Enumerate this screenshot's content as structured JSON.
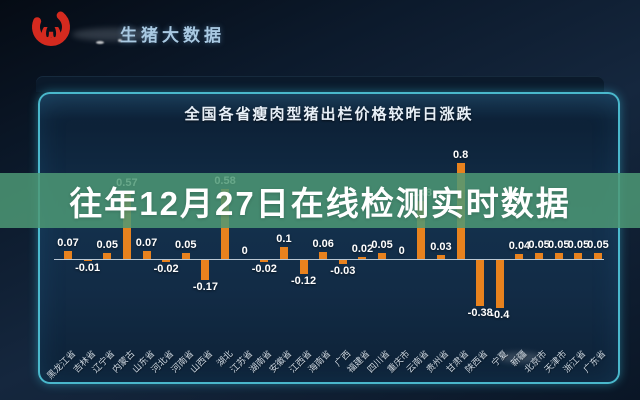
{
  "header": {
    "brand": "生猪大数据"
  },
  "overlay_banner": {
    "text": "往年12月27日在线检测实时数据",
    "bg_color": "#43876B"
  },
  "panel": {
    "title": "全国各省瘦肉型猪出栏价格较昨日涨跌"
  },
  "colors": {
    "bar": "#E8821E",
    "panel_border": "#56D2E6",
    "banner_green": "rgba(77,153,117,0.85)",
    "background": "#0D1C30",
    "value_label": "#FFFFFF",
    "axis_line": "#E4EEF6",
    "brand_text": "#A9C9E2",
    "logo_red": "#D42A1F"
  },
  "chart_data": {
    "type": "bar",
    "title": "全国各省瘦肉型猪出栏价格较昨日涨跌",
    "categories": [
      "黑龙江省",
      "吉林省",
      "辽宁省",
      "内蒙古",
      "山东省",
      "河北省",
      "河南省",
      "山西省",
      "湖北",
      "江苏省",
      "湖南省",
      "安徽省",
      "江西省",
      "海南省",
      "广西",
      "福建省",
      "四川省",
      "重庆市",
      "云南省",
      "贵州省",
      "甘肃省",
      "陕西省",
      "宁夏",
      "新疆",
      "北京市",
      "天津市",
      "浙江省",
      "广东省"
    ],
    "values": [
      0.07,
      -0.01,
      0.05,
      0.57,
      0.07,
      -0.02,
      0.05,
      -0.17,
      0.58,
      0,
      -0.02,
      0.1,
      -0.12,
      0.06,
      -0.03,
      0.02,
      0.05,
      0,
      0.48,
      0.03,
      0.8,
      -0.38,
      -0.4,
      0.04,
      0.05,
      0.05,
      0.05,
      0.05
    ],
    "value_labels": [
      "0.07",
      "-0.01",
      "0.05",
      "0.57",
      "0.07",
      "-0.02",
      "0.05",
      "-0.17",
      "0.58",
      "0",
      "-0.02",
      "0.1",
      "-0.12",
      "0.06",
      "-0.03",
      "0.02",
      "0.05",
      "0",
      "0.48",
      "0.03",
      "0.8",
      "-0.38",
      "-0.4",
      "0.04",
      "0.05",
      "0.05",
      "0.05",
      "0.05"
    ],
    "xlabel": "",
    "ylabel": "",
    "ylim": [
      -0.45,
      0.9
    ],
    "grid": false,
    "legend": "none",
    "bar_color": "#E8821E",
    "label_position": "outside-end"
  }
}
